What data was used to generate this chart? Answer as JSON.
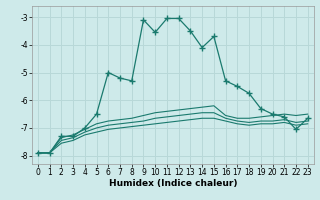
{
  "xlabel": "Humidex (Indice chaleur)",
  "background_color": "#ceeaea",
  "grid_color": "#b8d8d8",
  "line_color": "#1a7a6e",
  "xlim": [
    -0.5,
    23.5
  ],
  "ylim": [
    -8.3,
    -2.6
  ],
  "yticks": [
    -8,
    -7,
    -6,
    -5,
    -4,
    -3
  ],
  "xticks": [
    0,
    1,
    2,
    3,
    4,
    5,
    6,
    7,
    8,
    9,
    10,
    11,
    12,
    13,
    14,
    15,
    16,
    17,
    18,
    19,
    20,
    21,
    22,
    23
  ],
  "main_x": [
    0,
    1,
    2,
    3,
    4,
    5,
    6,
    7,
    8,
    9,
    10,
    11,
    12,
    13,
    14,
    15,
    16,
    17,
    18,
    19,
    20,
    21,
    22,
    23
  ],
  "main_y": [
    -7.9,
    -7.9,
    -7.3,
    -7.3,
    -7.0,
    -6.5,
    -5.0,
    -5.2,
    -5.3,
    -3.1,
    -3.55,
    -3.05,
    -3.05,
    -3.5,
    -4.1,
    -3.7,
    -5.3,
    -5.5,
    -5.75,
    -6.3,
    -6.5,
    -6.6,
    -7.05,
    -6.65
  ],
  "line2_x": [
    0,
    1,
    2,
    3,
    4,
    5,
    6,
    7,
    8,
    9,
    10,
    11,
    12,
    13,
    14,
    15,
    16,
    17,
    18,
    19,
    20,
    21,
    22,
    23
  ],
  "line2_y": [
    -7.9,
    -7.9,
    -7.35,
    -7.25,
    -7.05,
    -6.85,
    -6.75,
    -6.7,
    -6.65,
    -6.55,
    -6.45,
    -6.4,
    -6.35,
    -6.3,
    -6.25,
    -6.2,
    -6.55,
    -6.65,
    -6.65,
    -6.6,
    -6.55,
    -6.5,
    -6.55,
    -6.5
  ],
  "line3_x": [
    0,
    1,
    2,
    3,
    4,
    5,
    6,
    7,
    8,
    9,
    10,
    11,
    12,
    13,
    14,
    15,
    16,
    17,
    18,
    19,
    20,
    21,
    22,
    23
  ],
  "line3_y": [
    -7.9,
    -7.9,
    -7.45,
    -7.35,
    -7.15,
    -7.0,
    -6.9,
    -6.85,
    -6.8,
    -6.75,
    -6.65,
    -6.6,
    -6.55,
    -6.5,
    -6.45,
    -6.45,
    -6.65,
    -6.75,
    -6.8,
    -6.75,
    -6.75,
    -6.7,
    -6.8,
    -6.75
  ],
  "line4_x": [
    0,
    1,
    2,
    3,
    4,
    5,
    6,
    7,
    8,
    9,
    10,
    11,
    12,
    13,
    14,
    15,
    16,
    17,
    18,
    19,
    20,
    21,
    22,
    23
  ],
  "line4_y": [
    -7.9,
    -7.9,
    -7.55,
    -7.45,
    -7.25,
    -7.15,
    -7.05,
    -7.0,
    -6.95,
    -6.9,
    -6.85,
    -6.8,
    -6.75,
    -6.7,
    -6.65,
    -6.65,
    -6.75,
    -6.85,
    -6.9,
    -6.85,
    -6.85,
    -6.8,
    -6.9,
    -6.85
  ]
}
